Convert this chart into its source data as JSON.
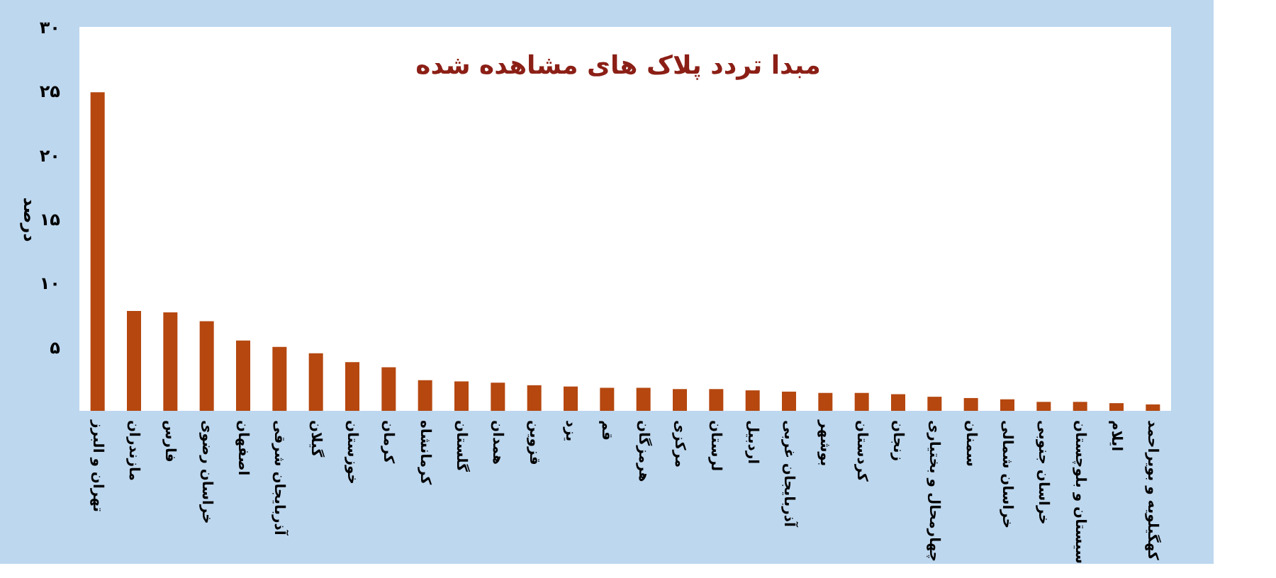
{
  "chart_data": {
    "type": "bar",
    "title": "مبدا تردد پلاک های مشاهده شده",
    "ylabel": "درصد",
    "categories": [
      "تهران و البرز",
      "مازندران",
      "فارس",
      "خراسان رضوی",
      "اصفهان",
      "آذربایجان شرقی",
      "گیلان",
      "خوزستان",
      "کرمان",
      "کرمانشاه",
      "گلستان",
      "همدان",
      "قزوین",
      "یزد",
      "قم",
      "هرمزگان",
      "مرکزی",
      "لرستان",
      "اردبیل",
      "آذربایجان غربی",
      "بوشهر",
      "کردستان",
      "زنجان",
      "چهارمحال و بختیاری",
      "سمنان",
      "خراسان شمالی",
      "خراسان جنوبی",
      "سیستان و بلوچستان",
      "ایلام",
      "کهگیلویه و بویراحمد"
    ],
    "values": [
      24.9,
      7.8,
      7.7,
      7.0,
      5.5,
      5.0,
      4.5,
      3.8,
      3.4,
      2.4,
      2.3,
      2.2,
      2.0,
      1.9,
      1.8,
      1.8,
      1.7,
      1.7,
      1.6,
      1.5,
      1.4,
      1.4,
      1.3,
      1.1,
      1.0,
      0.9,
      0.7,
      0.7,
      0.6,
      0.5
    ],
    "color": "#b5470f",
    "ylim": [
      0,
      30
    ],
    "yticks": [
      {
        "value": 5,
        "label": "۵"
      },
      {
        "value": 10,
        "label": "۱۰"
      },
      {
        "value": 15,
        "label": "۱۵"
      },
      {
        "value": 20,
        "label": "۲۰"
      },
      {
        "value": 25,
        "label": "۲۵"
      },
      {
        "value": 30,
        "label": "۳۰"
      }
    ],
    "grid": false
  }
}
